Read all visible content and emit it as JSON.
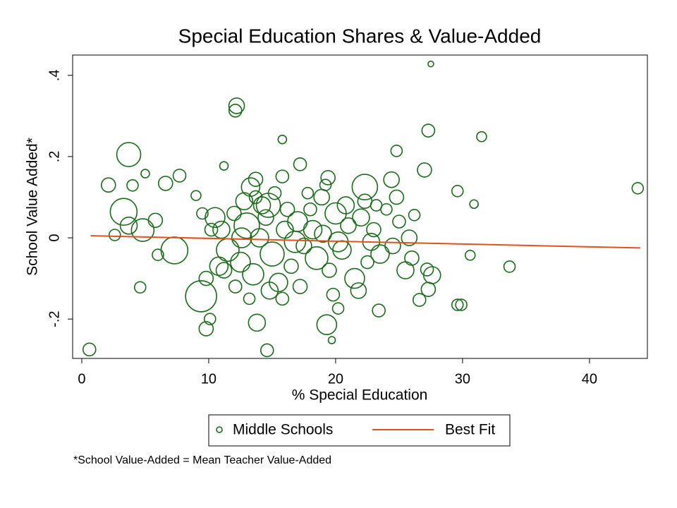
{
  "chart_data": {
    "type": "scatter",
    "title": "Special Education Shares & Value-Added",
    "xlabel": "% Special Education",
    "ylabel": "School Value Added*",
    "note": "*School Value-Added = Mean Teacher Value-Added",
    "xlim": [
      -0.72,
      44.56
    ],
    "ylim": [
      -0.297,
      0.45
    ],
    "xticks": [
      0,
      10,
      20,
      30,
      40
    ],
    "yticks": [
      {
        "value": -0.2,
        "label": "-.2"
      },
      0,
      {
        "value": 0.2,
        "label": ".2"
      },
      {
        "value": 0.4,
        "label": ".4"
      }
    ],
    "series": [
      {
        "name": "Middle Schools",
        "type": "scatter",
        "color": "#1a6b1a",
        "x": [
          27.5,
          12.2,
          12.1,
          3.7,
          15.8,
          31.5,
          27.3,
          24.8,
          11.2,
          17.2,
          2.1,
          5.0,
          7.7,
          6.6,
          4.0,
          27.0,
          29.6,
          30.9,
          43.8,
          9.0,
          3.3,
          3.7,
          4.8,
          5.8,
          2.6,
          6.0,
          7.3,
          4.6,
          0.6,
          14.6,
          19.7,
          9.8,
          10.1,
          9.4,
          13.8,
          19.3,
          20.2,
          23.4,
          26.6,
          29.6,
          29.9,
          27.3,
          27.6,
          27.2,
          33.7,
          30.6,
          26.2,
          24.4,
          22.3,
          19.4,
          15.8,
          14.7,
          13.3,
          13.7,
          10.5,
          11,
          11.5,
          12,
          12.5,
          13,
          13.5,
          14,
          14.5,
          15,
          15.5,
          16,
          16.5,
          17,
          17.5,
          18,
          18.5,
          19,
          19.5,
          20,
          20.5,
          21,
          21.5,
          22,
          22.5,
          23,
          23.5,
          24,
          24.5,
          25,
          25.5,
          11.2,
          12.8,
          13.7,
          14.8,
          16.2,
          17.8,
          18.9,
          20.8,
          22.3,
          23.2,
          21.8,
          19.8,
          17.2,
          15.8,
          13.2,
          12.1,
          10.8,
          9.8,
          10.2,
          25.8,
          24.8,
          26,
          9.5,
          12.6,
          14.2,
          16.8,
          18.2,
          20.2,
          22.8,
          15.2,
          19.2
        ],
        "values": [
          0.428,
          0.325,
          0.313,
          0.205,
          0.242,
          0.249,
          0.264,
          0.214,
          0.177,
          0.181,
          0.13,
          0.158,
          0.153,
          0.134,
          0.129,
          0.167,
          0.115,
          0.083,
          0.122,
          0.104,
          0.064,
          0.03,
          0.019,
          0.043,
          0.007,
          -0.042,
          -0.031,
          -0.122,
          -0.275,
          -0.277,
          -0.252,
          -0.224,
          -0.2,
          -0.144,
          -0.209,
          -0.214,
          -0.174,
          -0.179,
          -0.153,
          -0.165,
          -0.165,
          -0.127,
          -0.092,
          -0.078,
          -0.071,
          -0.043,
          0.056,
          0.143,
          0.125,
          0.148,
          0.151,
          0.08,
          0.125,
          0.144,
          0.05,
          0.02,
          -0.03,
          0.06,
          -0.06,
          0.03,
          -0.09,
          0.0,
          0.05,
          -0.04,
          -0.11,
          0.02,
          -0.07,
          0.04,
          -0.02,
          0.07,
          -0.05,
          0.01,
          -0.08,
          0.06,
          -0.03,
          0.03,
          -0.1,
          0.05,
          -0.06,
          0.02,
          -0.04,
          0.07,
          -0.02,
          0.04,
          -0.08,
          -0.08,
          0.09,
          0.1,
          -0.13,
          0.07,
          0.11,
          0.1,
          0.08,
          0.09,
          0.08,
          -0.13,
          -0.14,
          -0.12,
          -0.15,
          -0.15,
          -0.12,
          -0.07,
          -0.1,
          0.02,
          0.0,
          0.1,
          -0.05,
          0.06,
          0.0,
          0.08,
          -0.01,
          0.02,
          -0.01,
          -0.01,
          0.11,
          0.13
        ],
        "sizes": [
          4,
          11,
          9,
          17,
          6,
          7,
          9,
          8,
          6,
          9,
          10,
          6,
          9,
          10,
          8,
          10,
          8,
          6,
          8,
          7,
          19,
          12,
          16,
          10,
          8,
          8,
          19,
          8,
          9,
          9,
          5,
          10,
          8,
          22,
          12,
          14,
          8,
          9,
          9,
          8,
          8,
          10,
          12,
          9,
          8,
          7,
          8,
          11,
          18,
          10,
          9,
          17,
          13,
          10,
          14,
          12,
          16,
          10,
          14,
          18,
          15,
          13,
          11,
          17,
          13,
          12,
          10,
          14,
          11,
          9,
          16,
          12,
          10,
          15,
          13,
          11,
          14,
          12,
          9,
          10,
          13,
          8,
          11,
          9,
          12,
          11,
          12,
          9,
          12,
          10,
          8,
          11,
          12,
          10,
          8,
          11,
          9,
          10,
          9,
          8,
          9,
          13,
          10,
          9,
          11,
          10,
          10,
          8,
          14,
          12,
          15,
          13,
          14,
          12,
          9,
          8
        ]
      },
      {
        "name": "Best Fit",
        "type": "line",
        "color": "#e0521c",
        "x": [
          0.7,
          44
        ],
        "values": [
          0.005,
          -0.025
        ]
      }
    ]
  }
}
